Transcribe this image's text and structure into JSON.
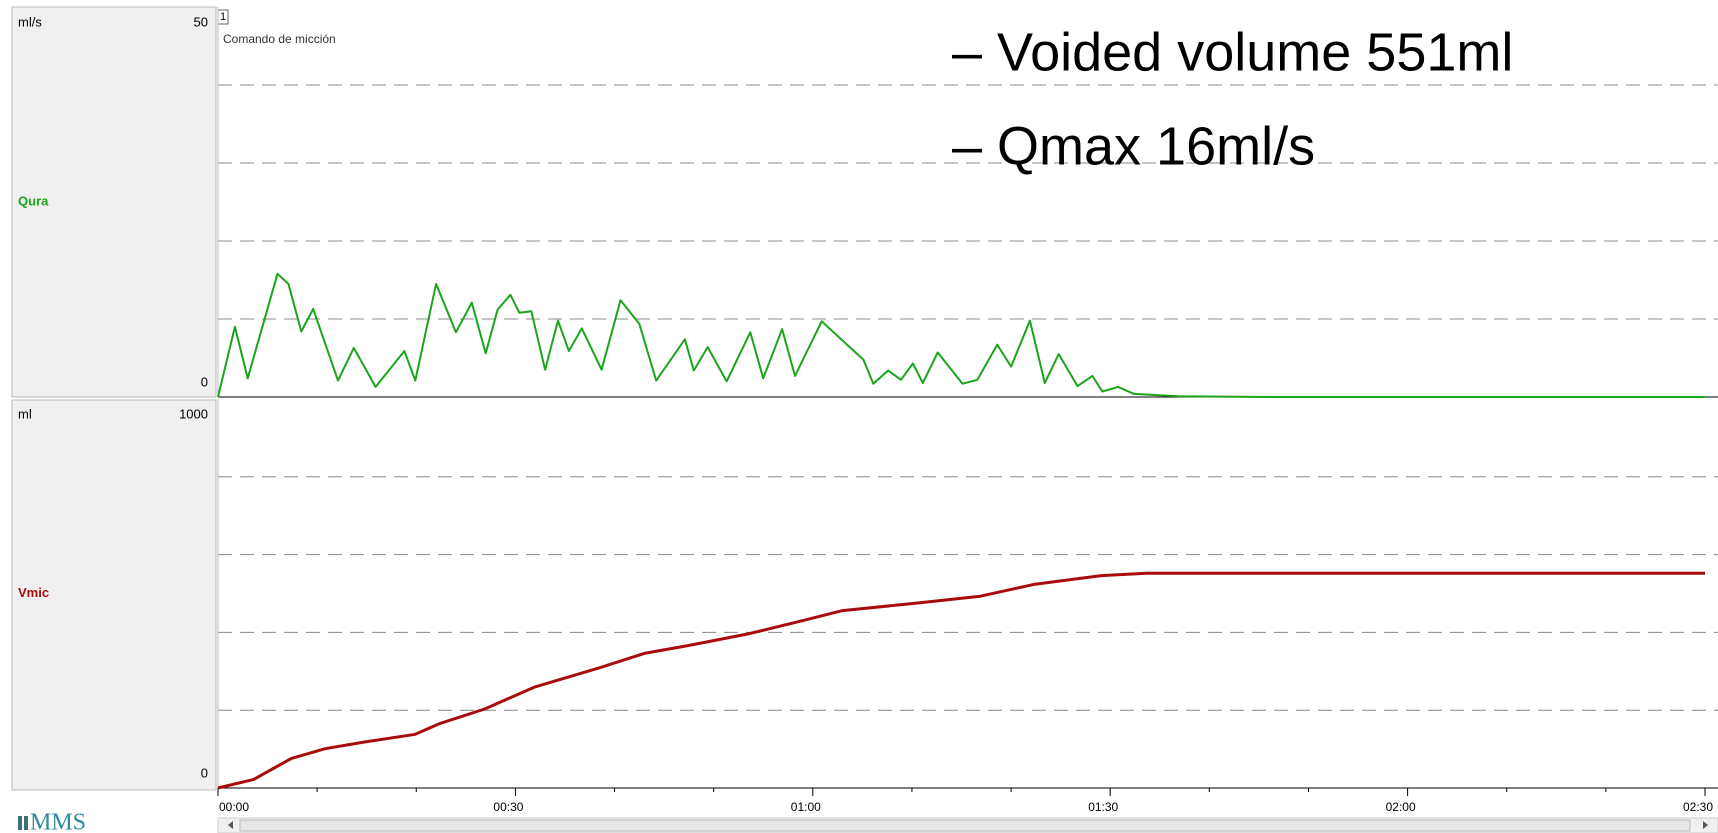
{
  "chart_data": [
    {
      "type": "line",
      "ylabel": "ml/s",
      "ylim": [
        0,
        50
      ],
      "yticks": [
        0,
        50
      ],
      "ygrid": [
        10,
        20,
        30,
        40
      ],
      "xlim": [
        0,
        150
      ],
      "events": [
        {
          "x": 0,
          "label": "1",
          "text": "Comando de micción"
        }
      ],
      "series": [
        {
          "name": "Qura",
          "color": "#1aa51a",
          "x": [
            0,
            1.7,
            3,
            6,
            7.1,
            8.4,
            9.6,
            12.1,
            13.7,
            15.9,
            18.8,
            19.9,
            22,
            24,
            25.6,
            27,
            28.2,
            29.5,
            30.4,
            31.6,
            33,
            34.3,
            35.4,
            36.7,
            38.7,
            40.6,
            42.5,
            44.2,
            47.1,
            48,
            49.4,
            51.3,
            53.7,
            55,
            56.9,
            58.2,
            60.9,
            63.2,
            65.1,
            66.1,
            67.6,
            68.9,
            70.1,
            71.1,
            72.6,
            75.1,
            76.6,
            78.6,
            80,
            81.9,
            83.4,
            84.8,
            86.7,
            88.2,
            89.2,
            90.8,
            92.4,
            96.9,
            105.8,
            150
          ],
          "values": [
            0,
            9,
            2.4,
            15.8,
            14.5,
            8.4,
            11.3,
            2.1,
            6.3,
            1.3,
            5.9,
            2.1,
            14.5,
            8.3,
            12.1,
            5.6,
            11.2,
            13.1,
            10.8,
            11,
            3.5,
            9.8,
            5.9,
            8.8,
            3.5,
            12.4,
            9.4,
            2.1,
            7.4,
            3.4,
            6.4,
            2,
            8.3,
            2.4,
            8.7,
            2.7,
            9.7,
            7,
            4.8,
            1.7,
            3.4,
            2.2,
            4.3,
            1.8,
            5.7,
            1.7,
            2.2,
            6.7,
            3.9,
            9.8,
            1.8,
            5.5,
            1.4,
            2.7,
            0.7,
            1.3,
            0.4,
            0.1,
            0,
            0
          ]
        }
      ]
    },
    {
      "type": "line",
      "ylabel": "ml",
      "ylim": [
        0,
        1000
      ],
      "yticks": [
        0,
        1000
      ],
      "ygrid": [
        200,
        400,
        600,
        800
      ],
      "xlim": [
        0,
        150
      ],
      "xticks": [
        {
          "value": 0,
          "label": "00:00"
        },
        {
          "value": 30,
          "label": "00:30"
        },
        {
          "value": 60,
          "label": "01:00"
        },
        {
          "value": 90,
          "label": "01:30"
        },
        {
          "value": 120,
          "label": "02:00"
        },
        {
          "value": 150,
          "label": "02:30"
        }
      ],
      "xminor_ticks": [
        10,
        20,
        40,
        50,
        70,
        80,
        100,
        110,
        130,
        140
      ],
      "series": [
        {
          "name": "Vmic",
          "color": "#a80c0c",
          "x": [
            0,
            3.6,
            7.4,
            10.8,
            14.7,
            19.9,
            22.4,
            26.9,
            31.9,
            38.6,
            43,
            47.4,
            53.6,
            59.1,
            63,
            70.8,
            76.9,
            82.4,
            89.1,
            93.6,
            150
          ],
          "values": [
            0,
            22,
            76,
            101,
            118,
            138,
            166,
            203,
            259,
            310,
            346,
            366,
            397,
            431,
            456,
            476,
            493,
            524,
            546,
            552,
            552
          ]
        }
      ]
    }
  ],
  "notes": [
    "– Voided volume 551ml",
    "– Qmax 16ml/s"
  ],
  "logo": "MMS"
}
